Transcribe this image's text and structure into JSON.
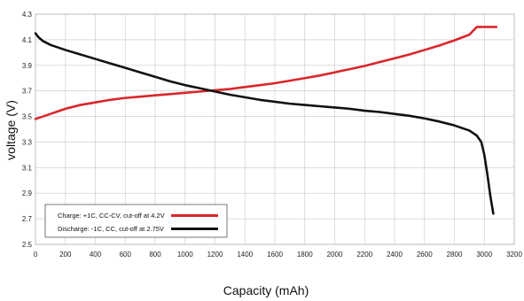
{
  "chart_data": {
    "type": "line",
    "xlabel": "Capacity (mAh)",
    "ylabel": "voltage (V)",
    "xlim": [
      0,
      3200
    ],
    "ylim": [
      2.5,
      4.3
    ],
    "x_ticks": [
      0,
      200,
      400,
      600,
      800,
      1000,
      1200,
      1400,
      1600,
      1800,
      2000,
      2200,
      2400,
      2600,
      2800,
      3000,
      3200
    ],
    "x_tick_labels": [
      "0",
      "200",
      "400",
      "600",
      "800",
      "1000",
      "1200",
      "1400",
      "1600",
      "1800",
      "2000",
      "2200",
      "2400",
      "2600",
      "2800",
      "3000",
      "3200"
    ],
    "y_ticks": [
      2.5,
      2.7,
      2.9,
      3.1,
      3.3,
      3.5,
      3.7,
      3.9,
      4.1,
      4.3
    ],
    "y_tick_labels": [
      "2.5",
      "2.7",
      "2.9",
      "3.1",
      "3.3",
      "3.5",
      "3.7",
      "3.9",
      "4.1",
      "4.3"
    ],
    "grid": true,
    "legend_position": "bottom-left",
    "series": [
      {
        "name": "Charge: +1C, CC-CV, cut-off at 4.2V",
        "color": "#d9262c",
        "x": [
          0,
          50,
          100,
          200,
          300,
          400,
          500,
          600,
          700,
          800,
          900,
          1000,
          1100,
          1200,
          1300,
          1400,
          1500,
          1600,
          1700,
          1800,
          1900,
          2000,
          2100,
          2200,
          2300,
          2400,
          2500,
          2600,
          2700,
          2800,
          2900,
          2950,
          3000,
          3080
        ],
        "y": [
          3.48,
          3.5,
          3.52,
          3.56,
          3.59,
          3.61,
          3.63,
          3.645,
          3.655,
          3.665,
          3.675,
          3.685,
          3.695,
          3.705,
          3.715,
          3.73,
          3.745,
          3.76,
          3.78,
          3.8,
          3.82,
          3.845,
          3.87,
          3.895,
          3.925,
          3.955,
          3.985,
          4.02,
          4.055,
          4.095,
          4.14,
          4.2,
          4.2,
          4.2
        ]
      },
      {
        "name": "Discharge: -1C, CC, cut-off at 2.75V",
        "color": "#111111",
        "x": [
          0,
          20,
          50,
          100,
          200,
          300,
          400,
          500,
          600,
          700,
          800,
          900,
          1000,
          1100,
          1200,
          1300,
          1400,
          1500,
          1600,
          1700,
          1800,
          1900,
          2000,
          2100,
          2200,
          2300,
          2400,
          2500,
          2600,
          2700,
          2800,
          2900,
          2950,
          2980,
          3000,
          3020,
          3040,
          3060
        ],
        "y": [
          4.15,
          4.12,
          4.09,
          4.06,
          4.02,
          3.985,
          3.95,
          3.915,
          3.88,
          3.845,
          3.81,
          3.775,
          3.745,
          3.72,
          3.695,
          3.67,
          3.65,
          3.63,
          3.615,
          3.6,
          3.59,
          3.58,
          3.57,
          3.56,
          3.545,
          3.535,
          3.52,
          3.505,
          3.485,
          3.46,
          3.43,
          3.39,
          3.35,
          3.3,
          3.2,
          3.05,
          2.88,
          2.74
        ]
      }
    ]
  }
}
